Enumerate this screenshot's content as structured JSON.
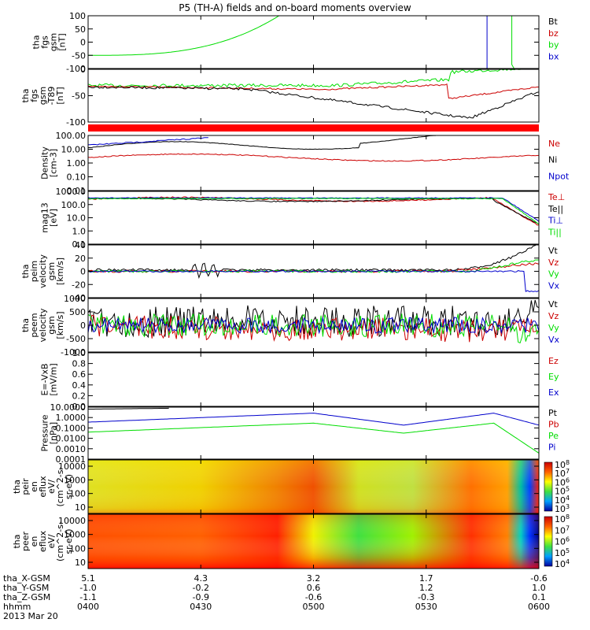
{
  "title": "P5 (TH-A) fields and on-board moments overview",
  "colors": {
    "black": "#000000",
    "red": "#cc0000",
    "green": "#00dd00",
    "blue": "#0000cc"
  },
  "chart_data": [
    {
      "type": "line",
      "ylabel": [
        "tha",
        "fgs",
        "gsm",
        "[nT]"
      ],
      "ticks": [
        "100",
        "50",
        "0",
        "-50",
        "-100"
      ],
      "ylim": [
        -100,
        100
      ],
      "legend": [
        {
          "text": "Bt",
          "color": "#000000"
        },
        {
          "text": "bz",
          "color": "#cc0000"
        },
        {
          "text": "by",
          "color": "#00dd00"
        },
        {
          "text": "bx",
          "color": "#0000cc"
        }
      ]
    },
    {
      "type": "line",
      "ylabel": [
        "tha",
        "fgs",
        "gsm",
        "-T89",
        "[nT]"
      ],
      "ticks": [
        "0",
        "-50",
        "-100"
      ],
      "ylim": [
        -130,
        50
      ],
      "legend": []
    },
    {
      "type": "line",
      "log": true,
      "ylabel": [
        "Density",
        "[cm-3]"
      ],
      "ticks": [
        "100.00",
        "10.00",
        "1.00",
        "0.10",
        "0.01"
      ],
      "legend": [
        {
          "text": "Ne",
          "color": "#cc0000"
        },
        {
          "text": "Ni",
          "color": "#000000"
        },
        {
          "text": "Npot",
          "color": "#0000cc"
        }
      ]
    },
    {
      "type": "line",
      "log": true,
      "ylabel": [
        "mag13",
        "[eV]"
      ],
      "ticks": [
        "1000.0",
        "100.0",
        "10.0",
        "1.0",
        "0.1"
      ],
      "legend": [
        {
          "text": "Te⊥",
          "color": "#cc0000"
        },
        {
          "text": "Te||",
          "color": "#000000"
        },
        {
          "text": "Ti⊥",
          "color": "#0000cc"
        },
        {
          "text": "Ti||",
          "color": "#00dd00"
        }
      ]
    },
    {
      "type": "line",
      "ylabel": [
        "tha",
        "peim",
        "velocity",
        "gsm",
        "[km/s]"
      ],
      "ticks": [
        "40",
        "20",
        "0",
        "-20",
        "-40"
      ],
      "ylim": [
        -40,
        40
      ],
      "legend": [
        {
          "text": "Vt",
          "color": "#000000"
        },
        {
          "text": "Vz",
          "color": "#cc0000"
        },
        {
          "text": "Vy",
          "color": "#00dd00"
        },
        {
          "text": "Vx",
          "color": "#0000cc"
        }
      ]
    },
    {
      "type": "line",
      "ylabel": [
        "tha",
        "peem",
        "velocity",
        "gsm",
        "[km/s]"
      ],
      "ticks": [
        "1000",
        "500",
        "0",
        "-500",
        "-1000"
      ],
      "ylim": [
        -1000,
        1000
      ],
      "legend": [
        {
          "text": "Vt",
          "color": "#000000"
        },
        {
          "text": "Vz",
          "color": "#cc0000"
        },
        {
          "text": "Vy",
          "color": "#00dd00"
        },
        {
          "text": "Vx",
          "color": "#0000cc"
        }
      ]
    },
    {
      "type": "line",
      "ylabel": [
        "E=-VxB",
        "[mV/m]"
      ],
      "ticks": [
        "1.0",
        "0.8",
        "0.6",
        "0.4",
        "0.2",
        "0.0"
      ],
      "ylim": [
        0,
        1
      ],
      "legend": [
        {
          "text": "Ez",
          "color": "#cc0000"
        },
        {
          "text": "Ey",
          "color": "#00dd00"
        },
        {
          "text": "Ex",
          "color": "#0000cc"
        }
      ]
    },
    {
      "type": "line",
      "log": true,
      "ylabel": [
        "Pressure",
        "[nPa]"
      ],
      "ticks": [
        "10.0000",
        "1.0000",
        "0.1000",
        "0.0100",
        "0.0010",
        "0.0001"
      ],
      "legend": [
        {
          "text": "Pt",
          "color": "#000000"
        },
        {
          "text": "Pb",
          "color": "#cc0000"
        },
        {
          "text": "Pe",
          "color": "#00dd00"
        },
        {
          "text": "Pi",
          "color": "#0000cc"
        }
      ]
    },
    {
      "type": "heatmap",
      "ylabel": [
        "tha",
        "peir",
        "en",
        "eflux",
        "eV/",
        "(cm^2-s-",
        "sr-eV)"
      ],
      "ticks": [
        "10000",
        "1000",
        "100",
        "10"
      ],
      "colorbar": [
        "10^8",
        "10^7",
        "10^6",
        "10^5",
        "10^4",
        "10^3"
      ]
    },
    {
      "type": "heatmap",
      "ylabel": [
        "tha",
        "peer",
        "en",
        "eflux",
        "eV/",
        "(cm^2-s-",
        "sr-eV)"
      ],
      "ticks": [
        "10000",
        "1000",
        "100",
        "10"
      ],
      "colorbar": [
        "10^8",
        "10^7",
        "10^6",
        "10^5",
        "10^4"
      ]
    }
  ],
  "bottom_axis": {
    "rows": [
      {
        "label": "tha_X-GSM",
        "values": [
          "5.1",
          "4.3",
          "3.2",
          "1.7",
          "-0.6"
        ]
      },
      {
        "label": "tha_Y-GSM",
        "values": [
          "-1.0",
          "-0.2",
          "0.6",
          "1.2",
          "1.0"
        ]
      },
      {
        "label": "tha_Z-GSM",
        "values": [
          "-1.1",
          "-0.9",
          "-0.6",
          "-0.3",
          "0.1"
        ]
      },
      {
        "label": "hhmm",
        "values": [
          "0400",
          "0430",
          "0500",
          "0530",
          "0600"
        ]
      }
    ],
    "date": "2013 Mar 20"
  }
}
